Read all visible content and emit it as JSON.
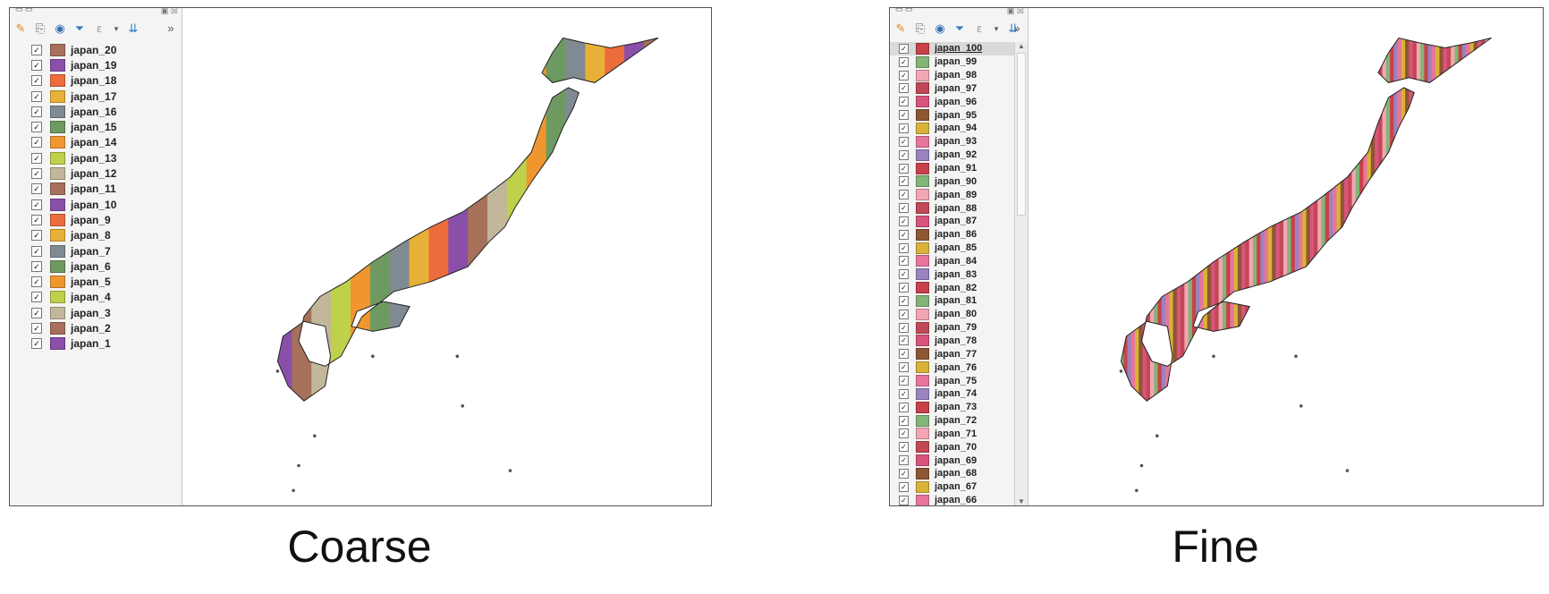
{
  "captions": {
    "coarse": "Coarse",
    "fine": "Fine"
  },
  "icons": [
    "paint-style-icon",
    "layer-add-icon",
    "eye-visibility-icon",
    "filter-icon",
    "expression-icon",
    "collapse-icon"
  ],
  "coarse": {
    "layers": [
      {
        "label": "japan_20",
        "color": "#a6705a"
      },
      {
        "label": "japan_19",
        "color": "#8a4fa8"
      },
      {
        "label": "japan_18",
        "color": "#ec6c3c"
      },
      {
        "label": "japan_17",
        "color": "#e7b036"
      },
      {
        "label": "japan_16",
        "color": "#7f8a93"
      },
      {
        "label": "japan_15",
        "color": "#6e9a62"
      },
      {
        "label": "japan_14",
        "color": "#f0962e"
      },
      {
        "label": "japan_13",
        "color": "#bfd04a"
      },
      {
        "label": "japan_12",
        "color": "#c2b79a"
      },
      {
        "label": "japan_11",
        "color": "#a6705a"
      },
      {
        "label": "japan_10",
        "color": "#8a4fa8"
      },
      {
        "label": "japan_9",
        "color": "#ec6c3c"
      },
      {
        "label": "japan_8",
        "color": "#e7b036"
      },
      {
        "label": "japan_7",
        "color": "#7f8a93"
      },
      {
        "label": "japan_6",
        "color": "#6e9a62"
      },
      {
        "label": "japan_5",
        "color": "#f0962e"
      },
      {
        "label": "japan_4",
        "color": "#bfd04a"
      },
      {
        "label": "japan_3",
        "color": "#c2b79a"
      },
      {
        "label": "japan_2",
        "color": "#a6705a"
      },
      {
        "label": "japan_1",
        "color": "#8a4fa8"
      }
    ]
  },
  "fine": {
    "layers": [
      {
        "label": "japan_100",
        "color": "#c9414a"
      },
      {
        "label": "japan_99",
        "color": "#83b576"
      },
      {
        "label": "japan_98",
        "color": "#f2a6b3"
      },
      {
        "label": "japan_97",
        "color": "#c24855"
      },
      {
        "label": "japan_96",
        "color": "#d9547d"
      },
      {
        "label": "japan_95",
        "color": "#8f5634"
      },
      {
        "label": "japan_94",
        "color": "#d9b238"
      },
      {
        "label": "japan_93",
        "color": "#e7759c"
      },
      {
        "label": "japan_92",
        "color": "#9a83be"
      },
      {
        "label": "japan_91",
        "color": "#c9414a"
      },
      {
        "label": "japan_90",
        "color": "#83b576"
      },
      {
        "label": "japan_89",
        "color": "#f2a6b3"
      },
      {
        "label": "japan_88",
        "color": "#c24855"
      },
      {
        "label": "japan_87",
        "color": "#d9547d"
      },
      {
        "label": "japan_86",
        "color": "#8f5634"
      },
      {
        "label": "japan_85",
        "color": "#d9b238"
      },
      {
        "label": "japan_84",
        "color": "#e7759c"
      },
      {
        "label": "japan_83",
        "color": "#9a83be"
      },
      {
        "label": "japan_82",
        "color": "#c9414a"
      },
      {
        "label": "japan_81",
        "color": "#83b576"
      },
      {
        "label": "japan_80",
        "color": "#f2a6b3"
      },
      {
        "label": "japan_79",
        "color": "#c24855"
      },
      {
        "label": "japan_78",
        "color": "#d9547d"
      },
      {
        "label": "japan_77",
        "color": "#8f5634"
      },
      {
        "label": "japan_76",
        "color": "#d9b238"
      },
      {
        "label": "japan_75",
        "color": "#e7759c"
      },
      {
        "label": "japan_74",
        "color": "#9a83be"
      },
      {
        "label": "japan_73",
        "color": "#c9414a"
      },
      {
        "label": "japan_72",
        "color": "#83b576"
      },
      {
        "label": "japan_71",
        "color": "#f2a6b3"
      },
      {
        "label": "japan_70",
        "color": "#c24855"
      },
      {
        "label": "japan_69",
        "color": "#d9547d"
      },
      {
        "label": "japan_68",
        "color": "#8f5634"
      },
      {
        "label": "japan_67",
        "color": "#d9b238"
      },
      {
        "label": "japan_66",
        "color": "#e7759c"
      }
    ]
  }
}
